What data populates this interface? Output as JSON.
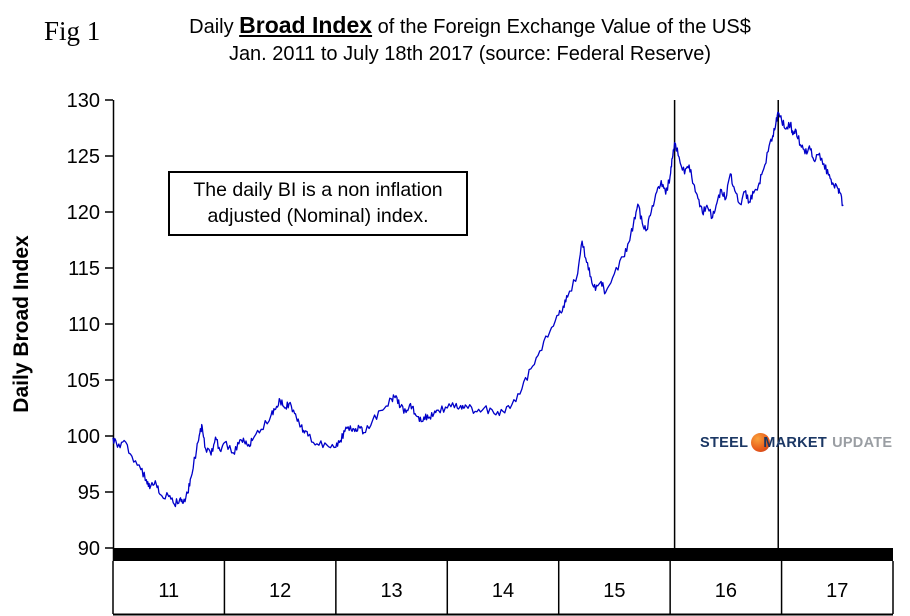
{
  "fig_label": "Fig 1",
  "title": {
    "prefix": "Daily ",
    "emphasis": "Broad Index",
    "suffix": " of the Foreign Exchange Value of the US$",
    "line2": "Jan. 2011 to July 18th 2017 (source: Federal Reserve)"
  },
  "annotation": {
    "line1": "The daily BI is a non inflation",
    "line2": "adjusted (Nominal) index."
  },
  "y_axis_label": "Daily Broad Index",
  "logo": {
    "steel": "STEEL",
    "market": "MARKET",
    "update": "UPDATE"
  },
  "colors": {
    "line": "#0000C8",
    "axis": "#000000",
    "logo_navy": "#1B3764",
    "logo_gray": "#9A9EA3",
    "logo_orange": "#E85A1A"
  },
  "chart_data": {
    "type": "line",
    "title": "Daily Broad Index of the Foreign Exchange Value of the US$",
    "subtitle": "Jan. 2011 to July 18th 2017 (source: Federal Reserve)",
    "xlabel": "",
    "ylabel": "Daily Broad Index",
    "ylim": [
      90,
      130
    ],
    "ytick_step": 5,
    "xlim": [
      2011,
      2018
    ],
    "xtick_labels": [
      "11",
      "12",
      "13",
      "14",
      "15",
      "16",
      "17"
    ],
    "grid": false,
    "legend": "none",
    "vlines": [
      2016.04,
      2016.97
    ],
    "series": [
      {
        "name": "Daily Broad Index",
        "points": [
          [
            2011.0,
            99.8
          ],
          [
            2011.04,
            99.0
          ],
          [
            2011.1,
            99.6
          ],
          [
            2011.17,
            98.2
          ],
          [
            2011.25,
            97.0
          ],
          [
            2011.3,
            96.1
          ],
          [
            2011.33,
            95.3
          ],
          [
            2011.38,
            96.0
          ],
          [
            2011.42,
            94.8
          ],
          [
            2011.5,
            94.6
          ],
          [
            2011.55,
            93.9
          ],
          [
            2011.6,
            94.4
          ],
          [
            2011.63,
            94.0
          ],
          [
            2011.67,
            94.9
          ],
          [
            2011.7,
            96.3
          ],
          [
            2011.75,
            98.8
          ],
          [
            2011.78,
            100.3
          ],
          [
            2011.8,
            100.9
          ],
          [
            2011.83,
            98.9
          ],
          [
            2011.88,
            98.3
          ],
          [
            2011.92,
            99.9
          ],
          [
            2011.96,
            98.7
          ],
          [
            2012.0,
            99.4
          ],
          [
            2012.08,
            98.5
          ],
          [
            2012.13,
            99.3
          ],
          [
            2012.17,
            99.8
          ],
          [
            2012.21,
            99.1
          ],
          [
            2012.25,
            99.6
          ],
          [
            2012.33,
            100.6
          ],
          [
            2012.42,
            101.9
          ],
          [
            2012.46,
            102.4
          ],
          [
            2012.5,
            103.2
          ],
          [
            2012.54,
            102.5
          ],
          [
            2012.58,
            102.9
          ],
          [
            2012.63,
            102.0
          ],
          [
            2012.67,
            101.2
          ],
          [
            2012.71,
            100.5
          ],
          [
            2012.75,
            100.0
          ],
          [
            2012.83,
            99.3
          ],
          [
            2012.92,
            99.2
          ],
          [
            2013.0,
            99.0
          ],
          [
            2013.04,
            99.6
          ],
          [
            2013.08,
            100.4
          ],
          [
            2013.13,
            100.9
          ],
          [
            2013.17,
            100.4
          ],
          [
            2013.21,
            100.8
          ],
          [
            2013.25,
            100.3
          ],
          [
            2013.33,
            101.4
          ],
          [
            2013.42,
            102.3
          ],
          [
            2013.5,
            103.3
          ],
          [
            2013.54,
            103.6
          ],
          [
            2013.58,
            102.6
          ],
          [
            2013.63,
            102.1
          ],
          [
            2013.67,
            102.9
          ],
          [
            2013.71,
            102.0
          ],
          [
            2013.75,
            101.3
          ],
          [
            2013.79,
            101.7
          ],
          [
            2013.83,
            101.6
          ],
          [
            2013.88,
            102.0
          ],
          [
            2013.92,
            102.3
          ],
          [
            2014.0,
            102.5
          ],
          [
            2014.08,
            102.9
          ],
          [
            2014.13,
            102.4
          ],
          [
            2014.17,
            102.7
          ],
          [
            2014.25,
            102.2
          ],
          [
            2014.33,
            102.5
          ],
          [
            2014.42,
            102.0
          ],
          [
            2014.5,
            102.2
          ],
          [
            2014.58,
            102.8
          ],
          [
            2014.67,
            104.2
          ],
          [
            2014.75,
            106.0
          ],
          [
            2014.83,
            107.6
          ],
          [
            2014.92,
            109.3
          ],
          [
            2015.0,
            110.8
          ],
          [
            2015.04,
            111.6
          ],
          [
            2015.08,
            112.4
          ],
          [
            2015.17,
            114.5
          ],
          [
            2015.21,
            117.4
          ],
          [
            2015.25,
            115.5
          ],
          [
            2015.29,
            114.2
          ],
          [
            2015.33,
            113.0
          ],
          [
            2015.38,
            113.8
          ],
          [
            2015.42,
            112.8
          ],
          [
            2015.5,
            114.5
          ],
          [
            2015.58,
            116.0
          ],
          [
            2015.63,
            117.3
          ],
          [
            2015.67,
            118.9
          ],
          [
            2015.71,
            120.7
          ],
          [
            2015.75,
            119.0
          ],
          [
            2015.79,
            118.4
          ],
          [
            2015.83,
            120.0
          ],
          [
            2015.88,
            121.8
          ],
          [
            2015.92,
            122.8
          ],
          [
            2015.96,
            121.6
          ],
          [
            2016.0,
            123.2
          ],
          [
            2016.02,
            124.8
          ],
          [
            2016.04,
            126.2
          ],
          [
            2016.08,
            124.9
          ],
          [
            2016.13,
            123.4
          ],
          [
            2016.17,
            124.2
          ],
          [
            2016.21,
            122.5
          ],
          [
            2016.25,
            121.2
          ],
          [
            2016.29,
            119.9
          ],
          [
            2016.33,
            120.6
          ],
          [
            2016.38,
            119.5
          ],
          [
            2016.42,
            120.8
          ],
          [
            2016.46,
            122.0
          ],
          [
            2016.5,
            121.2
          ],
          [
            2016.54,
            123.4
          ],
          [
            2016.58,
            121.9
          ],
          [
            2016.63,
            120.7
          ],
          [
            2016.67,
            121.8
          ],
          [
            2016.71,
            120.9
          ],
          [
            2016.75,
            121.7
          ],
          [
            2016.79,
            122.3
          ],
          [
            2016.83,
            123.6
          ],
          [
            2016.88,
            125.4
          ],
          [
            2016.92,
            126.8
          ],
          [
            2016.95,
            128.0
          ],
          [
            2016.97,
            128.9
          ],
          [
            2017.0,
            128.2
          ],
          [
            2017.04,
            127.4
          ],
          [
            2017.08,
            127.9
          ],
          [
            2017.1,
            126.9
          ],
          [
            2017.13,
            127.3
          ],
          [
            2017.17,
            126.0
          ],
          [
            2017.21,
            125.2
          ],
          [
            2017.25,
            125.9
          ],
          [
            2017.29,
            124.6
          ],
          [
            2017.33,
            125.1
          ],
          [
            2017.38,
            124.3
          ],
          [
            2017.42,
            123.3
          ],
          [
            2017.46,
            122.6
          ],
          [
            2017.5,
            122.2
          ],
          [
            2017.52,
            121.8
          ],
          [
            2017.55,
            120.6
          ]
        ]
      }
    ]
  }
}
